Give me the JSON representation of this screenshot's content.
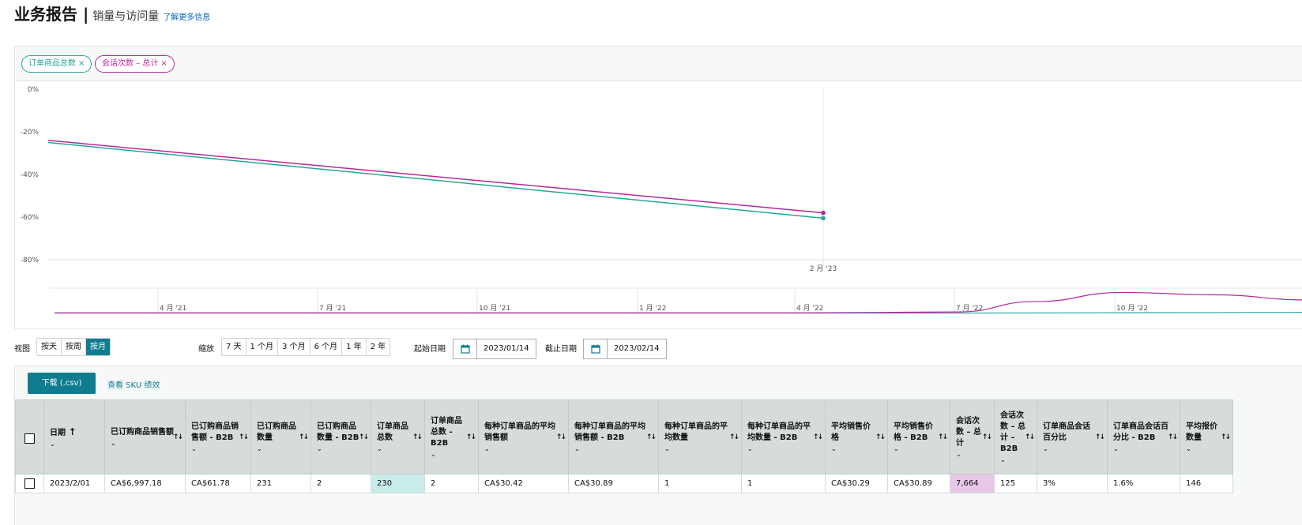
{
  "header": {
    "title": "业务报告",
    "separator": "|",
    "subtitle": "销量与访问量",
    "more_link": "了解更多信息"
  },
  "chips": [
    {
      "label": "订单商品总数",
      "close": "×",
      "color": "#26a69a"
    },
    {
      "label": "会话次数 – 总计",
      "close": "×",
      "color": "#b5289e"
    }
  ],
  "chart_data": {
    "type": "line",
    "y_ticks": [
      "0%",
      "-20%",
      "-40%",
      "-60%",
      "-80%"
    ],
    "ylim": [
      -80,
      0
    ],
    "x_marker_label": "2 月 '23",
    "series": [
      {
        "name": "会话次数 – 总计",
        "color": "#b5289e",
        "points": [
          [
            0,
            -24
          ],
          [
            1,
            -58
          ]
        ]
      },
      {
        "name": "订单商品总数",
        "color": "#26a69a",
        "points": [
          [
            0,
            -25
          ],
          [
            1,
            -60.5
          ]
        ]
      }
    ],
    "navigator": {
      "ticks": [
        "4 月 '21",
        "7 月 '21",
        "10 月 '21",
        "1 月 '22",
        "4 月 '22",
        "7 月 '22",
        "10 月 '22"
      ],
      "pink_curve": [
        [
          0,
          0.06
        ],
        [
          0.6,
          0.06
        ],
        [
          0.72,
          0.1
        ],
        [
          0.78,
          0.55
        ],
        [
          0.85,
          0.95
        ],
        [
          0.92,
          0.85
        ],
        [
          1,
          0.62
        ]
      ],
      "teal_curve": [
        [
          0,
          0.05
        ],
        [
          0.72,
          0.05
        ],
        [
          1,
          0.08
        ]
      ]
    }
  },
  "controls": {
    "view_label": "视图",
    "view_options": [
      "按天",
      "按周",
      "按月"
    ],
    "view_active": 2,
    "zoom_label": "缩放",
    "zoom_options": [
      "7 天",
      "1 个月",
      "3 个月",
      "6 个月",
      "1 年",
      "2 年"
    ],
    "start_label": "起始日期",
    "start_date": "2023/01/14",
    "end_label": "截止日期",
    "end_date": "2023/02/14"
  },
  "table": {
    "download_label": "下载 (.csv)",
    "sku_link": "查看 SKU 绩效",
    "sort_glyph": "↑↓",
    "chev_glyph": "⌄",
    "date_sort_glyph": "↑",
    "columns": [
      "日期",
      "已订购商品销售额",
      "已订购商品销售额 - B2B",
      "已订购商品数量",
      "已订购商品数量 - B2B",
      "订单商品总数",
      "订单商品总数 - B2B",
      "每种订单商品的平均销售额",
      "每种订单商品的平均销售额 - B2B",
      "每种订单商品的平均数量",
      "每种订单商品的平均数量 - B2B",
      "平均销售价格",
      "平均销售价格 - B2B",
      "会话次数 – 总计",
      "会话次数 – 总计 – B2B",
      "订单商品会话百分比",
      "订单商品会话百分比 - B2B",
      "平均报价数量"
    ],
    "rows": [
      [
        "2023/2/01",
        "CA$6,997.18",
        "CA$61.78",
        "231",
        "2",
        "230",
        "2",
        "CA$30.42",
        "CA$30.89",
        "1",
        "1",
        "CA$30.29",
        "CA$30.89",
        "7,664",
        "125",
        "3%",
        "1.6%",
        "146"
      ]
    ]
  }
}
